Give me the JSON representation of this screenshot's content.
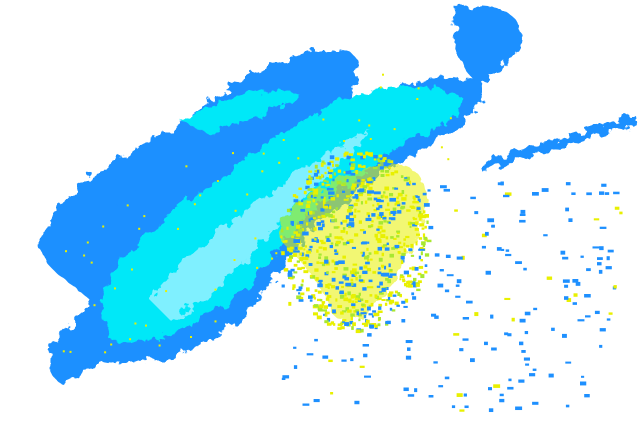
{
  "image": {
    "type": "radar-reflectivity",
    "background": "#ffffff",
    "colors": {
      "light_echo": "#1e90ff",
      "moderate_echo": "#00e8f8",
      "core_echo": "#7ff0ff",
      "strong_echo": "#e8f000",
      "strong_echo_alt": "#a8e830"
    }
  }
}
